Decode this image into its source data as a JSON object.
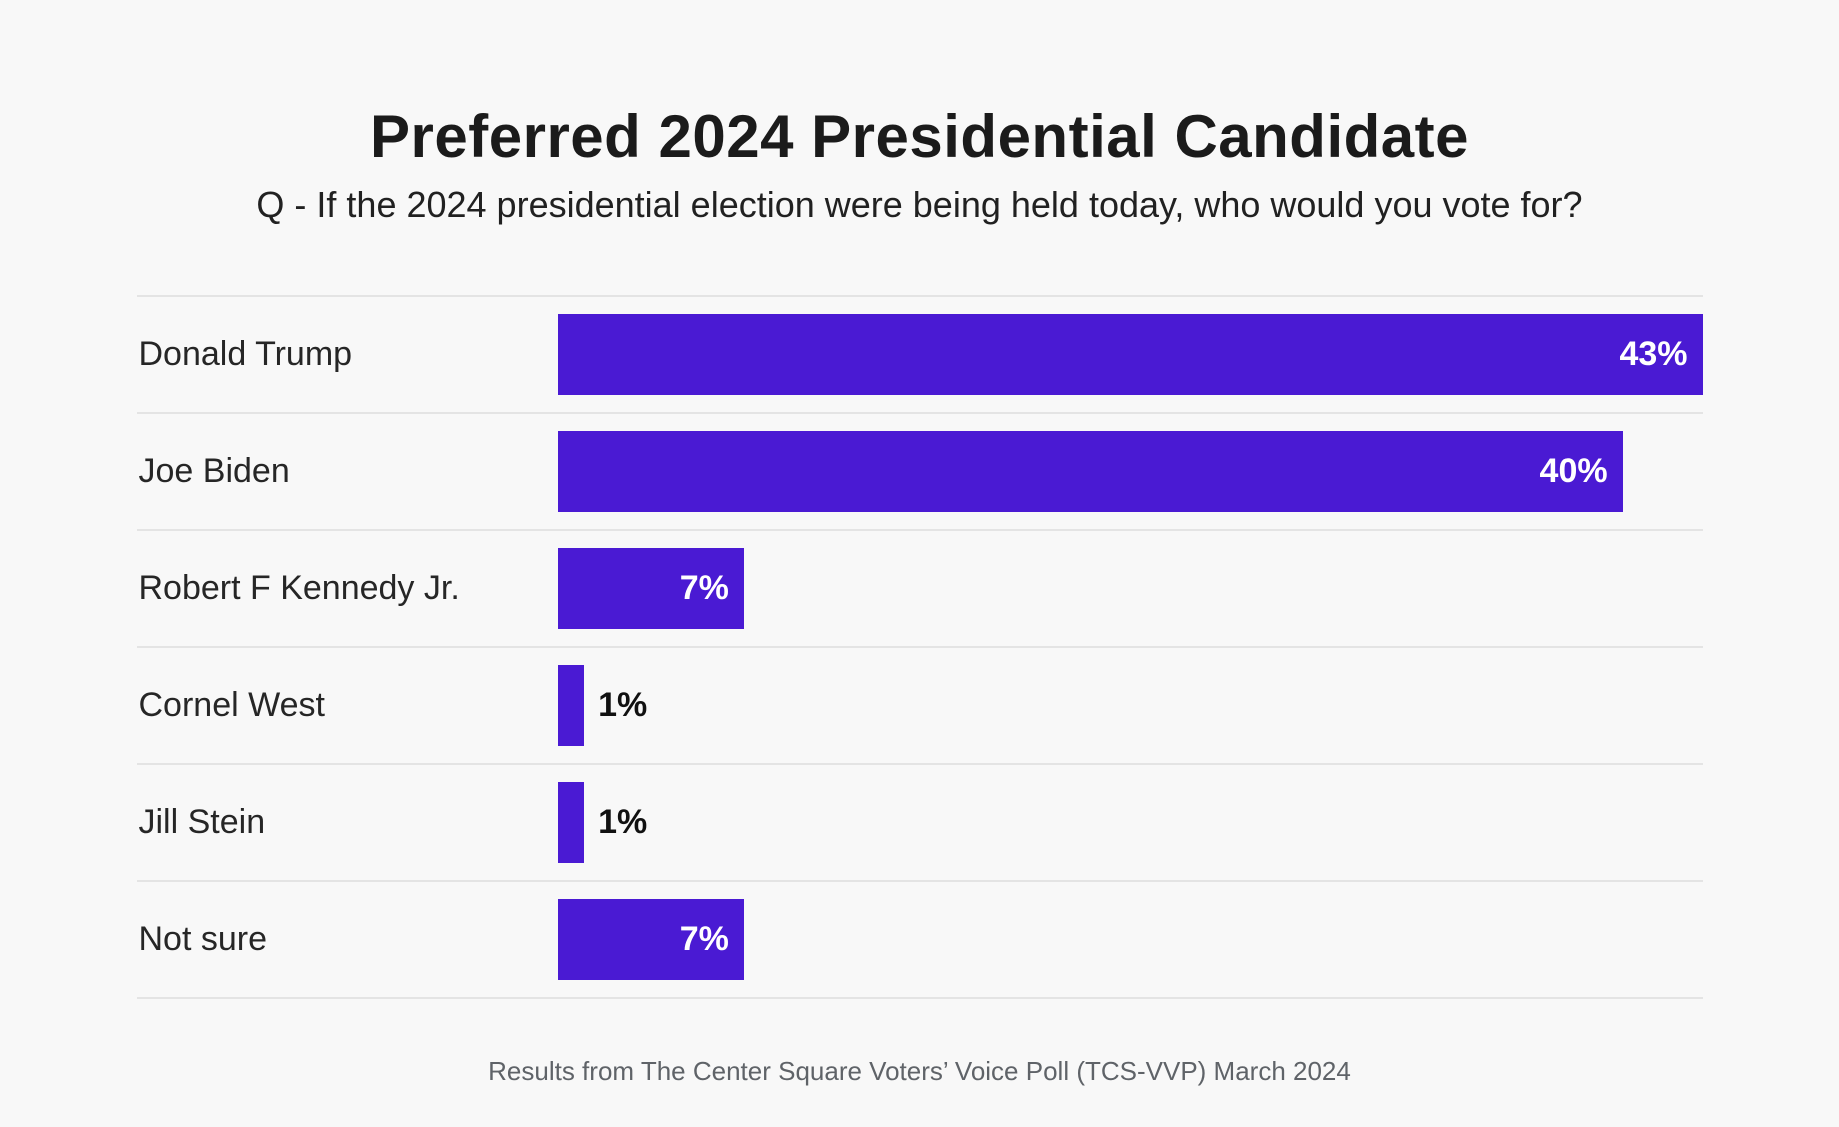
{
  "page": {
    "background": "#f8f8f8"
  },
  "header": {
    "title": "Preferred 2024 Presidential Candidate",
    "subtitle": "Q - If the 2024 presidential election were being held today, who would you vote for?"
  },
  "footer": {
    "source": "Results from The Center Square Voters’ Voice Poll (TCS-VVP) March 2024"
  },
  "chart_data": {
    "type": "bar",
    "orientation": "horizontal",
    "title": "Preferred 2024 Presidential Candidate",
    "subtitle": "Q - If the 2024 presidential election were being held today, who would you vote for?",
    "categories": [
      "Donald Trump",
      "Joe Biden",
      "Robert F Kennedy Jr.",
      "Cornel West",
      "Jill Stein",
      "Not sure"
    ],
    "values": [
      43,
      40,
      7,
      1,
      1,
      7
    ],
    "value_labels": [
      "43%",
      "40%",
      "7%",
      "1%",
      "1%",
      "7%"
    ],
    "unit": "%",
    "xlim": [
      0,
      43
    ],
    "bar_color": "#4a1ad3",
    "inside_value_color": "#ffffff",
    "outside_value_color": "#111111",
    "inside_label_min_value": 5,
    "separator_color": "#e4e4e4",
    "grid": false,
    "legend": false,
    "source_note": "Results from The Center Square Voters’ Voice Poll (TCS-VVP) March 2024"
  }
}
